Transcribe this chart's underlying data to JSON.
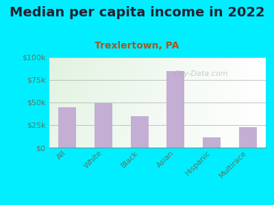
{
  "title": "Median per capita income in 2022",
  "subtitle": "Trexlertown, PA",
  "categories": [
    "All",
    "White",
    "Black",
    "Asian",
    "Hispanic",
    "Multirace"
  ],
  "values": [
    45000,
    49000,
    35000,
    85000,
    11000,
    23000
  ],
  "bar_color": "#c4aed4",
  "background_outer": "#00eeff",
  "title_color": "#222233",
  "subtitle_color": "#aa5522",
  "tick_color": "#557766",
  "ylim": [
    0,
    100000
  ],
  "yticks": [
    0,
    25000,
    50000,
    75000,
    100000
  ],
  "ytick_labels": [
    "$0",
    "$25k",
    "$50k",
    "$75k",
    "$100k"
  ],
  "watermark": "City-Data.com",
  "title_fontsize": 14,
  "subtitle_fontsize": 10,
  "tick_fontsize": 8
}
